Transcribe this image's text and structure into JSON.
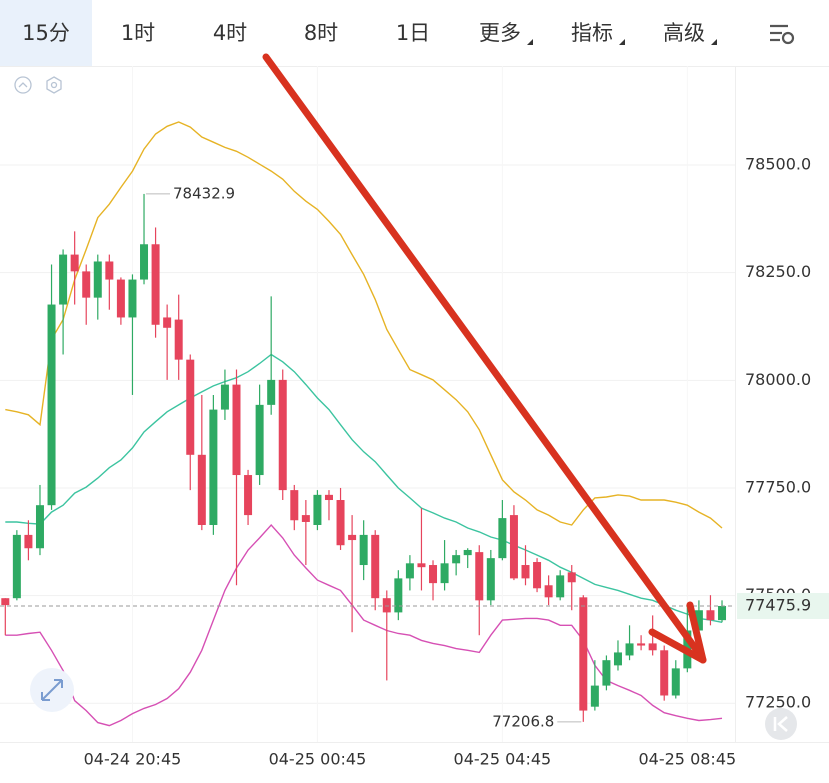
{
  "tabs": [
    "15分",
    "1时",
    "4时",
    "8时",
    "1日",
    "更多",
    "指标",
    "高级"
  ],
  "chart_data": {
    "type": "candlestick",
    "categories": [
      null,
      null,
      null,
      null,
      null,
      null,
      null,
      null,
      null,
      null,
      null,
      "04-24 20:45",
      null,
      null,
      null,
      null,
      null,
      null,
      null,
      null,
      null,
      null,
      null,
      null,
      null,
      null,
      null,
      "04-25 00:45",
      null,
      null,
      null,
      null,
      null,
      null,
      null,
      null,
      null,
      null,
      null,
      null,
      null,
      null,
      null,
      "04-25 04:45",
      null,
      null,
      null,
      null,
      null,
      null,
      null,
      null,
      null,
      null,
      null,
      null,
      null,
      null,
      null,
      "04-25 08:45",
      null,
      null,
      null
    ],
    "open": [
      77494,
      77494,
      77641,
      77610,
      77710,
      78176,
      78292,
      78253,
      78192,
      78276,
      78234,
      78146,
      78234,
      78316,
      78146,
      78141,
      78048,
      77827,
      77664,
      77932,
      77990,
      77780,
      77780,
      77943,
      78001,
      77745,
      77687,
      77664,
      77734,
      77722,
      77641,
      77571,
      77641,
      77494,
      77461,
      77540,
      77575,
      77571,
      77529,
      77575,
      77594,
      77601,
      77489,
      77587,
      77687,
      77571,
      77578,
      77524,
      77496,
      77554,
      77496,
      77242,
      77291,
      77338,
      77361,
      77389,
      77389,
      77373,
      77268,
      77331,
      77419,
      77466,
      77443
    ],
    "high": [
      77494,
      77652,
      77675,
      77757,
      78269,
      78304,
      78346,
      78269,
      78292,
      78292,
      78239,
      78246,
      78432.9,
      78355,
      78176,
      78199,
      78060,
      77966,
      77966,
      78025,
      78025,
      77792,
      77990,
      78195,
      78025,
      77757,
      77722,
      77745,
      77745,
      77750,
      77687,
      77675,
      77652,
      77512,
      77559,
      77594,
      77703,
      77582,
      77629,
      77606,
      77610,
      77617,
      77606,
      77722,
      77710,
      77617,
      77587,
      77547,
      77559,
      77571,
      77501,
      77350,
      77361,
      77396,
      77431,
      77408,
      77454,
      77384,
      77350,
      77478,
      77489,
      77501,
      77489
    ],
    "low": [
      77408,
      77489,
      77582,
      77594,
      77699,
      78060,
      78176,
      78129,
      78141,
      78164,
      78129,
      77966,
      78223,
      78099,
      78001,
      78001,
      77745,
      77652,
      77641,
      77908,
      77524,
      77664,
      77757,
      77920,
      77722,
      77652,
      77571,
      77652,
      77675,
      77606,
      77415,
      77536,
      77466,
      77303,
      77443,
      77512,
      77512,
      77489,
      77512,
      77547,
      77564,
      77408,
      77478,
      77582,
      77536,
      77524,
      77508,
      77478,
      77489,
      77466,
      77206.8,
      77233,
      77280,
      77326,
      77350,
      77373,
      77361,
      77256,
      77261,
      77322,
      77408,
      77431,
      77438
    ],
    "close": [
      77478,
      77641,
      77610,
      77710,
      78176,
      78292,
      78253,
      78192,
      78276,
      78234,
      78146,
      78234,
      78316,
      78129,
      78122,
      78048,
      77827,
      77664,
      77932,
      77990,
      77780,
      77687,
      77943,
      78001,
      77745,
      77675,
      77671,
      77734,
      77722,
      77617,
      77629,
      77641,
      77494,
      77461,
      77540,
      77575,
      77566,
      77529,
      77575,
      77594,
      77606,
      77489,
      77587,
      77680,
      77540,
      77540,
      77517,
      77496,
      77547,
      77531,
      77233,
      77291,
      77350,
      77368,
      77389,
      77384,
      77373,
      77268,
      77331,
      77419,
      77466,
      77443,
      77475.9
    ],
    "up_color": "#2eaa63",
    "down_color": "#e6445c",
    "bands": [
      {
        "color": "#e6b325",
        "values": [
          77932,
          77927,
          77920,
          77897,
          78095,
          78141,
          78234,
          78304,
          78378,
          78409,
          78448,
          78486,
          78537,
          78572,
          78590,
          78600,
          78588,
          78565,
          78553,
          78541,
          78532,
          78518,
          78502,
          78486,
          78467,
          78439,
          78416,
          78397,
          78369,
          78339,
          78292,
          78246,
          78188,
          78118,
          78071,
          78025,
          78013,
          78001,
          77978,
          77955,
          77927,
          77885,
          77827,
          77769,
          77741,
          77722,
          77699,
          77687,
          77671,
          77664,
          77699,
          77727,
          77729,
          77734,
          77731,
          77722,
          77722,
          77722,
          77717,
          77710,
          77694,
          77680,
          77657
        ]
      },
      {
        "color": "#3cc4a0",
        "values": [
          77671,
          77671,
          77668,
          77666,
          77694,
          77710,
          77738,
          77752,
          77773,
          77797,
          77815,
          77843,
          77880,
          77904,
          77927,
          77943,
          77959,
          77973,
          77987,
          77997,
          78006,
          78020,
          78039,
          78060,
          78043,
          78020,
          77990,
          77959,
          77932,
          77897,
          77862,
          77834,
          77811,
          77780,
          77750,
          77727,
          77703,
          77692,
          77680,
          77671,
          77657,
          77648,
          77636,
          77629,
          77617,
          77606,
          77594,
          77582,
          77566,
          77554,
          77540,
          77526,
          77519,
          77512,
          77503,
          77494,
          77489,
          77478,
          77466,
          77457,
          77447,
          77443,
          77438
        ]
      },
      {
        "color": "#d650b4",
        "values": [
          77408,
          77408,
          77412,
          77415,
          77373,
          77326,
          77256,
          77233,
          77205,
          77198,
          77210,
          77226,
          77238,
          77247,
          77261,
          77284,
          77322,
          77373,
          77443,
          77512,
          77564,
          77606,
          77634,
          77664,
          77634,
          77594,
          77564,
          77536,
          77524,
          77512,
          77478,
          77443,
          77431,
          77419,
          77412,
          77408,
          77396,
          77389,
          77384,
          77377,
          77373,
          77368,
          77408,
          77443,
          77445,
          77447,
          77447,
          77443,
          77431,
          77431,
          77396,
          77338,
          77303,
          77291,
          77280,
          77268,
          77245,
          77228,
          77221,
          77215,
          77210,
          77212,
          77215
        ]
      }
    ],
    "ylim": [
      77160,
      78730
    ],
    "yticks": [
      {
        "value": 77250,
        "label": "77250.0"
      },
      {
        "value": 77500,
        "label": "77500.0"
      },
      {
        "value": 77750,
        "label": "77750.0"
      },
      {
        "value": 78000,
        "label": "78000.0"
      },
      {
        "value": 78250,
        "label": "78250.0"
      },
      {
        "value": 78500,
        "label": "78500.0"
      }
    ],
    "grid": true
  }
}
